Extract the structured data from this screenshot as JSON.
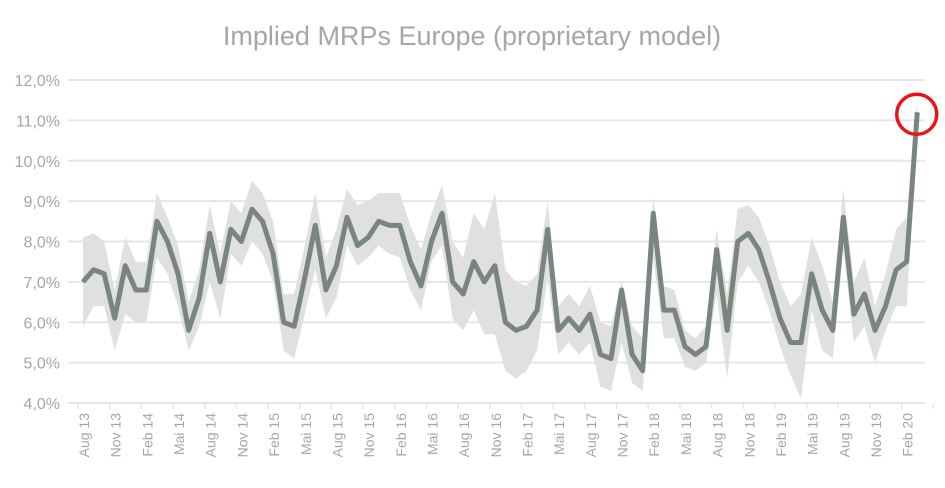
{
  "chart_data": {
    "type": "line",
    "title": "Implied MRPs Europe (proprietary model)",
    "xlabel": "",
    "ylabel": "",
    "ylim": [
      4,
      12
    ],
    "yticks": [
      "4,0%",
      "5,0%",
      "6,0%",
      "7,0%",
      "8,0%",
      "9,0%",
      "10,0%",
      "11,0%",
      "12,0%"
    ],
    "xtick_labels": [
      "Aug 13",
      "Nov 13",
      "Feb 14",
      "Mai 14",
      "Aug 14",
      "Nov 14",
      "Feb 15",
      "Mai 15",
      "Aug 15",
      "Nov 15",
      "Feb 16",
      "Mai 16",
      "Aug 16",
      "Nov 16",
      "Feb 17",
      "Mai 17",
      "Aug 17",
      "Nov 17",
      "Feb 18",
      "Mai 18",
      "Aug 18",
      "Nov 18",
      "Feb 19",
      "Mai 19",
      "Aug 19",
      "Nov 19",
      "Feb 20"
    ],
    "grid": true,
    "legend": "none",
    "colors": {
      "line": "#7a857e",
      "band": "#dfe0df",
      "grid": "#e6e6e6",
      "text": "#a6a6a6",
      "highlight": "#e8141b"
    },
    "series": [
      {
        "values": [
          7.0,
          7.3,
          7.2,
          6.1,
          7.4,
          6.8,
          6.8,
          8.5,
          8.0,
          7.2,
          5.8,
          6.6,
          8.2,
          7.0,
          8.3,
          8.0,
          8.8,
          8.5,
          7.7,
          6.0,
          5.9,
          7.1,
          8.4,
          6.8,
          7.4,
          8.6,
          7.9,
          8.1,
          8.5,
          8.4,
          8.4,
          7.5,
          6.9,
          8.0,
          8.7,
          7.0,
          6.7,
          7.5,
          7.0,
          7.4,
          6.0,
          5.8,
          5.9,
          6.3,
          8.3,
          5.8,
          6.1,
          5.8,
          6.2,
          5.2,
          5.1,
          6.8,
          5.2,
          4.8,
          8.7,
          6.3,
          6.3,
          5.4,
          5.2,
          5.4,
          7.8,
          5.8,
          8.0,
          8.2,
          7.8,
          7.0,
          6.1,
          5.5,
          5.5,
          7.2,
          6.3,
          5.8,
          8.6,
          6.2,
          6.7,
          5.8,
          6.4,
          7.3,
          7.5,
          11.2
        ]
      },
      {
        "kind": "band-upper",
        "values": [
          8.1,
          8.2,
          8.0,
          6.8,
          8.1,
          7.5,
          7.5,
          9.2,
          8.6,
          7.9,
          6.5,
          7.3,
          8.9,
          7.7,
          9.0,
          8.7,
          9.5,
          9.2,
          8.5,
          6.7,
          6.7,
          7.9,
          9.2,
          7.6,
          8.3,
          9.3,
          8.9,
          9.0,
          9.2,
          9.2,
          9.2,
          8.4,
          7.8,
          8.7,
          9.4,
          8.0,
          7.6,
          8.7,
          8.3,
          9.2,
          7.3,
          7.0,
          6.9,
          7.2,
          9.0,
          6.4,
          6.7,
          6.4,
          6.9,
          6.0,
          5.9,
          7.0,
          5.9,
          5.6,
          9.1,
          6.9,
          6.8,
          5.8,
          5.6,
          5.9,
          8.3,
          6.7,
          8.8,
          8.9,
          8.6,
          7.9,
          7.0,
          6.4,
          6.7,
          8.1,
          7.4,
          6.5,
          9.3,
          7.0,
          7.6,
          6.4,
          7.2,
          8.3,
          8.6,
          11.5
        ]
      },
      {
        "kind": "band-lower",
        "values": [
          5.9,
          6.4,
          6.4,
          5.3,
          6.2,
          6.0,
          6.0,
          7.6,
          7.2,
          6.4,
          5.3,
          5.9,
          7.0,
          6.1,
          7.7,
          7.4,
          8.0,
          7.7,
          7.0,
          5.3,
          5.1,
          6.2,
          7.3,
          6.1,
          6.6,
          7.9,
          7.4,
          7.6,
          7.9,
          7.7,
          7.6,
          6.8,
          6.3,
          7.5,
          7.9,
          6.1,
          5.8,
          6.3,
          5.7,
          5.7,
          4.8,
          4.6,
          4.8,
          5.3,
          7.1,
          5.2,
          5.5,
          5.2,
          5.5,
          4.4,
          4.3,
          5.5,
          4.5,
          4.3,
          7.6,
          5.6,
          5.6,
          4.9,
          4.8,
          5.0,
          6.7,
          4.6,
          7.0,
          7.4,
          7.0,
          6.3,
          5.4,
          4.7,
          4.1,
          6.3,
          5.3,
          5.1,
          7.8,
          5.5,
          5.9,
          5.0,
          5.8,
          6.4,
          6.4,
          11.0
        ]
      }
    ],
    "annotations": [
      {
        "type": "circle",
        "target": "last-point"
      }
    ]
  }
}
